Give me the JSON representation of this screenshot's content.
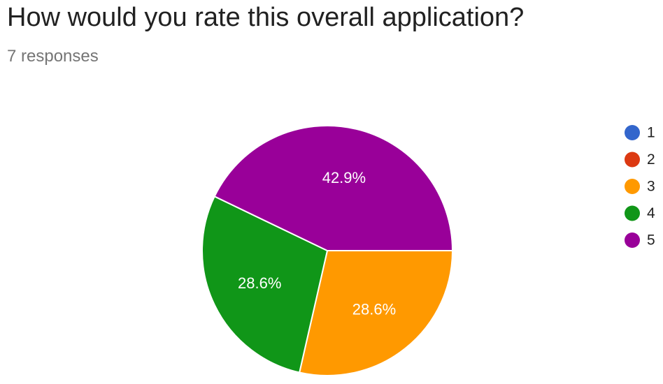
{
  "header": {
    "title": "How would you rate this overall application?",
    "responses": "7 responses"
  },
  "chart_data": {
    "type": "pie",
    "title": "How would you rate this overall application?",
    "legend_position": "right",
    "slices": [
      {
        "label": "1",
        "value": 0,
        "percent_label": "",
        "color": "#3366cc"
      },
      {
        "label": "2",
        "value": 0,
        "percent_label": "",
        "color": "#dc3912"
      },
      {
        "label": "3",
        "value": 2,
        "percent_label": "28.6%",
        "color": "#ff9900"
      },
      {
        "label": "4",
        "value": 2,
        "percent_label": "28.6%",
        "color": "#109618"
      },
      {
        "label": "5",
        "value": 3,
        "percent_label": "42.9%",
        "color": "#990099"
      }
    ]
  }
}
